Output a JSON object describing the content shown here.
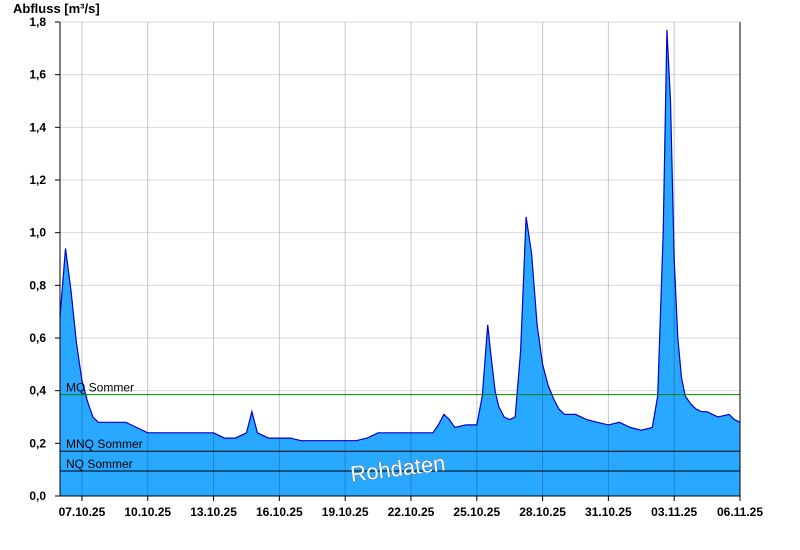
{
  "chart_data": {
    "type": "area",
    "ylabel": "Abfluss [m³/s]",
    "ylim": [
      0,
      1.8
    ],
    "yticks": [
      "0,0",
      "0,2",
      "0,4",
      "0,6",
      "0,8",
      "1,0",
      "1,2",
      "1,4",
      "1,6",
      "1,8"
    ],
    "xlim": [
      "06.10.25 00:00",
      "06.11.25 00:00"
    ],
    "xticks": [
      "07.10.25",
      "10.10.25",
      "13.10.25",
      "16.10.25",
      "19.10.25",
      "22.10.25",
      "25.10.25",
      "28.10.25",
      "31.10.25",
      "03.11.25",
      "06.11.25"
    ],
    "grid": true,
    "watermark": "Rohdaten",
    "colors": {
      "fill": "#29a8ff",
      "line": "#0000cc",
      "mq": "#008000",
      "mnq": "#000000",
      "nq": "#000000",
      "grid": "#d9d9d9"
    },
    "reference_lines": [
      {
        "name": "MQ Sommer",
        "value": 0.385,
        "color": "#008000"
      },
      {
        "name": "MNQ Sommer",
        "value": 0.17,
        "color": "#000000"
      },
      {
        "name": "NQ Sommer",
        "value": 0.095,
        "color": "#000000"
      }
    ],
    "series": [
      {
        "name": "",
        "x": [
          "06.10.25 00:00",
          "06.10.25 06:00",
          "06.10.25 12:00",
          "06.10.25 18:00",
          "07.10.25 00:00",
          "07.10.25 06:00",
          "07.10.25 12:00",
          "07.10.25 18:00",
          "08.10.25 00:00",
          "08.10.25 12:00",
          "09.10.25 00:00",
          "09.10.25 12:00",
          "10.10.25 00:00",
          "10.10.25 12:00",
          "11.10.25 00:00",
          "12.10.25 00:00",
          "13.10.25 00:00",
          "13.10.25 12:00",
          "14.10.25 00:00",
          "14.10.25 12:00",
          "14.10.25 18:00",
          "15.10.25 00:00",
          "15.10.25 12:00",
          "16.10.25 00:00",
          "16.10.25 12:00",
          "17.10.25 00:00",
          "17.10.25 12:00",
          "18.10.25 00:00",
          "19.10.25 00:00",
          "19.10.25 12:00",
          "20.10.25 00:00",
          "20.10.25 12:00",
          "21.10.25 00:00",
          "22.10.25 00:00",
          "23.10.25 00:00",
          "23.10.25 06:00",
          "23.10.25 12:00",
          "23.10.25 18:00",
          "24.10.25 00:00",
          "24.10.25 12:00",
          "25.10.25 00:00",
          "25.10.25 06:00",
          "25.10.25 12:00",
          "25.10.25 16:00",
          "25.10.25 20:00",
          "26.10.25 00:00",
          "26.10.25 06:00",
          "26.10.25 12:00",
          "26.10.25 18:00",
          "27.10.25 00:00",
          "27.10.25 06:00",
          "27.10.25 12:00",
          "27.10.25 18:00",
          "28.10.25 00:00",
          "28.10.25 06:00",
          "28.10.25 12:00",
          "28.10.25 18:00",
          "29.10.25 00:00",
          "29.10.25 12:00",
          "30.10.25 00:00",
          "30.10.25 12:00",
          "31.10.25 00:00",
          "31.10.25 12:00",
          "01.11.25 00:00",
          "01.11.25 12:00",
          "02.11.25 00:00",
          "02.11.25 06:00",
          "02.11.25 12:00",
          "02.11.25 16:00",
          "02.11.25 20:00",
          "03.11.25 00:00",
          "03.11.25 04:00",
          "03.11.25 08:00",
          "03.11.25 12:00",
          "03.11.25 18:00",
          "04.11.25 00:00",
          "04.11.25 06:00",
          "04.11.25 12:00",
          "04.11.25 18:00",
          "05.11.25 00:00",
          "05.11.25 12:00",
          "05.11.25 18:00",
          "06.11.25 00:00"
        ],
        "y": [
          0.68,
          0.94,
          0.78,
          0.58,
          0.44,
          0.36,
          0.3,
          0.28,
          0.28,
          0.28,
          0.28,
          0.26,
          0.24,
          0.24,
          0.24,
          0.24,
          0.24,
          0.22,
          0.22,
          0.24,
          0.32,
          0.24,
          0.22,
          0.22,
          0.22,
          0.21,
          0.21,
          0.21,
          0.21,
          0.21,
          0.22,
          0.24,
          0.24,
          0.24,
          0.24,
          0.27,
          0.31,
          0.29,
          0.26,
          0.27,
          0.27,
          0.38,
          0.65,
          0.52,
          0.4,
          0.34,
          0.3,
          0.29,
          0.3,
          0.55,
          1.06,
          0.92,
          0.65,
          0.5,
          0.42,
          0.37,
          0.33,
          0.31,
          0.31,
          0.29,
          0.28,
          0.27,
          0.28,
          0.26,
          0.25,
          0.26,
          0.38,
          1.0,
          1.77,
          1.5,
          0.9,
          0.6,
          0.45,
          0.38,
          0.35,
          0.33,
          0.32,
          0.32,
          0.31,
          0.3,
          0.31,
          0.29,
          0.28
        ]
      }
    ]
  }
}
